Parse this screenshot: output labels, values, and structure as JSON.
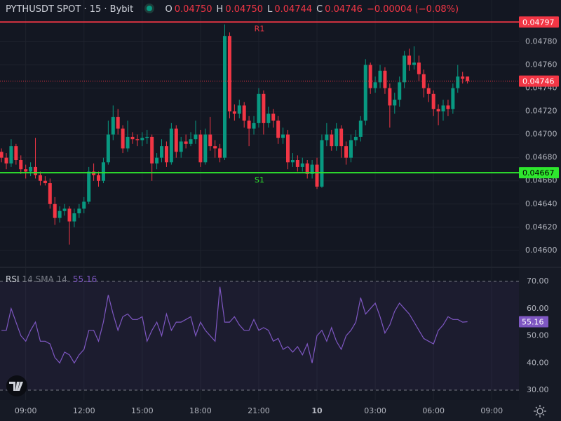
{
  "chart_data": [
    {
      "type": "candlestick",
      "title": "PYTHUSDT SPOT · 15 · Bybit",
      "ohlc": [
        {
          "key": "O",
          "value": 0.0475,
          "label": "0.04750"
        },
        {
          "key": "H",
          "value": 0.0475,
          "label": "0.04750"
        },
        {
          "key": "L",
          "value": 0.04744,
          "label": "0.04744"
        },
        {
          "key": "C",
          "value": 0.04746,
          "label": "0.04746"
        }
      ],
      "change": {
        "value": -4e-05,
        "label": "−0.00004 (−0.08%)"
      },
      "up_color": "#089981",
      "down_color": "#f23645",
      "open": [
        0.04685,
        0.0468,
        0.04675,
        0.0469,
        0.04678,
        0.0467,
        0.04668,
        0.04672,
        0.04665,
        0.0466,
        0.04658,
        0.0464,
        0.04628,
        0.04634,
        0.04636,
        0.04625,
        0.04632,
        0.04636,
        0.04642,
        0.04668,
        0.04665,
        0.0466,
        0.04676,
        0.047,
        0.04715,
        0.04705,
        0.04688,
        0.04698,
        0.04696,
        0.04695,
        0.04697,
        0.04698,
        0.04675,
        0.0468,
        0.0469,
        0.04676,
        0.04705,
        0.04685,
        0.04694,
        0.04692,
        0.04696,
        0.047,
        0.04676,
        0.047,
        0.0469,
        0.04688,
        0.0468,
        0.04785,
        0.0472,
        0.04718,
        0.04725,
        0.04712,
        0.04705,
        0.0471,
        0.04735,
        0.0471,
        0.04718,
        0.04712,
        0.04697,
        0.047,
        0.04676,
        0.04678,
        0.04672,
        0.04675,
        0.04666,
        0.04674,
        0.04655,
        0.04695,
        0.047,
        0.0469,
        0.04705,
        0.0469,
        0.0468,
        0.04695,
        0.04698,
        0.04712,
        0.0476,
        0.0474,
        0.04745,
        0.04755,
        0.0474,
        0.04725,
        0.0473,
        0.04745,
        0.04768,
        0.0476,
        0.04762,
        0.04752,
        0.0474,
        0.04735,
        0.04722,
        0.0472,
        0.04725,
        0.04722,
        0.0474,
        0.0475,
        0.0475
      ],
      "high": [
        0.04688,
        0.04684,
        0.04696,
        0.04692,
        0.04682,
        0.04674,
        0.04676,
        0.04697,
        0.04668,
        0.04664,
        0.04662,
        0.04646,
        0.04638,
        0.0464,
        0.04638,
        0.04636,
        0.0464,
        0.04646,
        0.04672,
        0.04675,
        0.04668,
        0.0468,
        0.04712,
        0.04725,
        0.04722,
        0.04708,
        0.04712,
        0.04702,
        0.047,
        0.04702,
        0.04704,
        0.047,
        0.04684,
        0.04696,
        0.04694,
        0.0471,
        0.04708,
        0.04698,
        0.047,
        0.04702,
        0.04712,
        0.04704,
        0.04705,
        0.04715,
        0.04695,
        0.04692,
        0.04795,
        0.04788,
        0.04726,
        0.0473,
        0.04728,
        0.04716,
        0.04716,
        0.0474,
        0.04738,
        0.04724,
        0.04722,
        0.04716,
        0.04706,
        0.04704,
        0.04684,
        0.04682,
        0.0468,
        0.04678,
        0.04678,
        0.0468,
        0.047,
        0.0471,
        0.04704,
        0.0471,
        0.04708,
        0.04694,
        0.047,
        0.04704,
        0.04716,
        0.04765,
        0.04762,
        0.0475,
        0.0476,
        0.04758,
        0.04744,
        0.04736,
        0.0475,
        0.04772,
        0.04774,
        0.04776,
        0.04768,
        0.04756,
        0.04744,
        0.04738,
        0.04726,
        0.0473,
        0.0473,
        0.04744,
        0.0476,
        0.04754,
        0.0475
      ],
      "low": [
        0.04676,
        0.0467,
        0.04672,
        0.04674,
        0.04666,
        0.04662,
        0.04664,
        0.04662,
        0.04656,
        0.04656,
        0.04636,
        0.04622,
        0.04624,
        0.0463,
        0.04605,
        0.0462,
        0.04628,
        0.04632,
        0.0464,
        0.0466,
        0.04655,
        0.04658,
        0.04674,
        0.04695,
        0.047,
        0.04684,
        0.04685,
        0.04692,
        0.0469,
        0.0469,
        0.04692,
        0.0466,
        0.0467,
        0.04676,
        0.04672,
        0.04674,
        0.0468,
        0.0468,
        0.04688,
        0.0469,
        0.04692,
        0.04672,
        0.04674,
        0.04686,
        0.0468,
        0.04676,
        0.04678,
        0.04714,
        0.04712,
        0.04714,
        0.04706,
        0.0469,
        0.047,
        0.04706,
        0.047,
        0.04706,
        0.04706,
        0.04692,
        0.04692,
        0.0467,
        0.04672,
        0.04668,
        0.04668,
        0.04662,
        0.04662,
        0.04653,
        0.04654,
        0.0469,
        0.04686,
        0.04686,
        0.0468,
        0.04674,
        0.04676,
        0.0469,
        0.04694,
        0.04708,
        0.04735,
        0.04736,
        0.0474,
        0.04735,
        0.04706,
        0.04718,
        0.04724,
        0.0474,
        0.04755,
        0.04756,
        0.04746,
        0.04732,
        0.04728,
        0.04716,
        0.04708,
        0.04712,
        0.04716,
        0.04718,
        0.04736,
        0.04744,
        0.04744
      ],
      "close": [
        0.0468,
        0.04675,
        0.0469,
        0.04678,
        0.0467,
        0.04668,
        0.04672,
        0.04665,
        0.0466,
        0.04658,
        0.0464,
        0.04628,
        0.04634,
        0.04636,
        0.04625,
        0.04632,
        0.04636,
        0.04642,
        0.04668,
        0.04665,
        0.0466,
        0.04676,
        0.047,
        0.04715,
        0.04705,
        0.04688,
        0.04698,
        0.04696,
        0.04695,
        0.04697,
        0.04698,
        0.04675,
        0.0468,
        0.0469,
        0.04676,
        0.04705,
        0.04685,
        0.04694,
        0.04692,
        0.04696,
        0.047,
        0.04676,
        0.047,
        0.0469,
        0.04688,
        0.0468,
        0.04785,
        0.0472,
        0.04718,
        0.04725,
        0.04712,
        0.04705,
        0.0471,
        0.04735,
        0.0471,
        0.04718,
        0.04712,
        0.04697,
        0.047,
        0.04676,
        0.04678,
        0.04672,
        0.04675,
        0.04666,
        0.04674,
        0.04655,
        0.04695,
        0.047,
        0.0469,
        0.04705,
        0.0469,
        0.0468,
        0.04695,
        0.04698,
        0.04712,
        0.0476,
        0.0474,
        0.04745,
        0.04755,
        0.0474,
        0.04725,
        0.0473,
        0.04745,
        0.04768,
        0.0476,
        0.04762,
        0.04752,
        0.0474,
        0.04735,
        0.04722,
        0.0472,
        0.04725,
        0.04722,
        0.0474,
        0.0475,
        0.04748,
        0.04746
      ],
      "xlim": [
        -0.3,
        106.6
      ],
      "xticks": [
        {
          "value": 5,
          "label": "09:00"
        },
        {
          "value": 17,
          "label": "12:00"
        },
        {
          "value": 29,
          "label": "15:00"
        },
        {
          "value": 41,
          "label": "18:00"
        },
        {
          "value": 53,
          "label": "21:00"
        },
        {
          "value": 65,
          "label": "10"
        },
        {
          "value": 77,
          "label": "03:00"
        },
        {
          "value": 89,
          "label": "06:00"
        },
        {
          "value": 101,
          "label": "09:00"
        }
      ],
      "ylim": [
        0.04586,
        0.04816
      ],
      "yticks": [
        {
          "value": 0.046,
          "label": "0.04600"
        },
        {
          "value": 0.0462,
          "label": "0.04620"
        },
        {
          "value": 0.0464,
          "label": "0.04640"
        },
        {
          "value": 0.0466,
          "label": "0.04660"
        },
        {
          "value": 0.0468,
          "label": "0.04680"
        },
        {
          "value": 0.047,
          "label": "0.04700"
        },
        {
          "value": 0.0472,
          "label": "0.04720"
        },
        {
          "value": 0.0474,
          "label": "0.04740"
        },
        {
          "value": 0.0476,
          "label": "0.04760"
        },
        {
          "value": 0.0478,
          "label": "0.04780"
        }
      ],
      "grid": true,
      "levels": [
        {
          "name": "R1",
          "value": 0.04797,
          "label": "0.04797",
          "color": "#f23645"
        },
        {
          "name": "S1",
          "value": 0.04667,
          "label": "0.04667",
          "color": "#2ee62e"
        }
      ],
      "last_price": {
        "value": 0.04746,
        "label": "0.04746"
      }
    },
    {
      "type": "line",
      "title": "RSI",
      "subtitle": "14 SMA 14",
      "color": "#7e57c2",
      "values": [
        52,
        52,
        60,
        55,
        50,
        48,
        52,
        55,
        48,
        48,
        47,
        42,
        40,
        44,
        43,
        40,
        43,
        45,
        52,
        52,
        48,
        55,
        65,
        58,
        52,
        57,
        58,
        56,
        56,
        57,
        48,
        52,
        55,
        50,
        58,
        52,
        55,
        55,
        56,
        57,
        50,
        55,
        52,
        50,
        48,
        68,
        55,
        55,
        57,
        54,
        52,
        52,
        56,
        52,
        53,
        52,
        48,
        49,
        45,
        46,
        44,
        46,
        43,
        47,
        40,
        50,
        52,
        48,
        53,
        48,
        45,
        50,
        52,
        55,
        64,
        58,
        60,
        62,
        57,
        51,
        54,
        59,
        62,
        60,
        58,
        55,
        52,
        49,
        48,
        47,
        52,
        54,
        57,
        56,
        56,
        55,
        55.16
      ],
      "ylim": [
        26.4,
        74.9
      ],
      "yticks": [
        {
          "value": 30,
          "label": "30.00"
        },
        {
          "value": 40,
          "label": "40.00"
        },
        {
          "value": 50,
          "label": "50.00"
        },
        {
          "value": 60,
          "label": "60.00"
        },
        {
          "value": 70,
          "label": "70.00"
        }
      ]
    }
  ]
}
